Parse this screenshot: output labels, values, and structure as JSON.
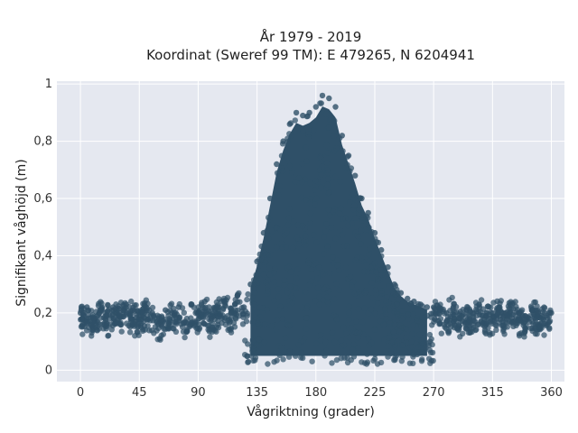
{
  "chart_data": {
    "type": "scatter",
    "title_line1": "År 1979 - 2019",
    "title_line2": "Koordinat (Sweref 99 TM): E 479265, N 6204941",
    "xlabel": "Vågriktning (grader)",
    "ylabel": "Signifikant våghöjd (m)",
    "xlim": [
      -18,
      370
    ],
    "ylim": [
      -0.04,
      1.01
    ],
    "xticks": [
      0,
      45,
      90,
      135,
      180,
      225,
      270,
      315,
      360
    ],
    "xtick_labels": [
      "0",
      "45",
      "90",
      "135",
      "180",
      "225",
      "270",
      "315",
      "360"
    ],
    "yticks": [
      0,
      0.2,
      0.4,
      0.6,
      0.8,
      1
    ],
    "ytick_labels": [
      "0",
      "0,2",
      "0,4",
      "0,6",
      "0,8",
      "1"
    ],
    "grid": true,
    "marker_color": "#2f5068",
    "background_color": "#e5e8f0",
    "points": [
      [
        0,
        0.2
      ],
      [
        5,
        0.22
      ],
      [
        10,
        0.18
      ],
      [
        15,
        0.21
      ],
      [
        20,
        0.19
      ],
      [
        25,
        0.22
      ],
      [
        30,
        0.2
      ],
      [
        35,
        0.23
      ],
      [
        40,
        0.21
      ],
      [
        45,
        0.19
      ],
      [
        50,
        0.22
      ],
      [
        55,
        0.2
      ],
      [
        60,
        0.18
      ],
      [
        65,
        0.21
      ],
      [
        70,
        0.2
      ],
      [
        75,
        0.22
      ],
      [
        80,
        0.17
      ],
      [
        85,
        0.23
      ],
      [
        90,
        0.2
      ],
      [
        95,
        0.24
      ],
      [
        100,
        0.18
      ],
      [
        105,
        0.22
      ],
      [
        110,
        0.24
      ],
      [
        115,
        0.2
      ],
      [
        120,
        0.26
      ],
      [
        125,
        0.22
      ],
      [
        130,
        0.3
      ],
      [
        135,
        0.38
      ],
      [
        140,
        0.48
      ],
      [
        145,
        0.6
      ],
      [
        150,
        0.72
      ],
      [
        155,
        0.8
      ],
      [
        160,
        0.86
      ],
      [
        165,
        0.9
      ],
      [
        170,
        0.89
      ],
      [
        175,
        0.9
      ],
      [
        180,
        0.92
      ],
      [
        185,
        0.96
      ],
      [
        190,
        0.95
      ],
      [
        195,
        0.92
      ],
      [
        200,
        0.82
      ],
      [
        205,
        0.75
      ],
      [
        210,
        0.68
      ],
      [
        215,
        0.6
      ],
      [
        220,
        0.55
      ],
      [
        225,
        0.48
      ],
      [
        230,
        0.42
      ],
      [
        235,
        0.36
      ],
      [
        240,
        0.3
      ],
      [
        245,
        0.27
      ],
      [
        250,
        0.25
      ],
      [
        255,
        0.24
      ],
      [
        260,
        0.23
      ],
      [
        265,
        0.22
      ],
      [
        270,
        0.22
      ],
      [
        275,
        0.21
      ],
      [
        280,
        0.2
      ],
      [
        285,
        0.22
      ],
      [
        290,
        0.18
      ],
      [
        295,
        0.21
      ],
      [
        300,
        0.2
      ],
      [
        305,
        0.22
      ],
      [
        310,
        0.19
      ],
      [
        315,
        0.2
      ],
      [
        320,
        0.22
      ],
      [
        325,
        0.2
      ],
      [
        330,
        0.23
      ],
      [
        335,
        0.2
      ],
      [
        340,
        0.19
      ],
      [
        345,
        0.21
      ],
      [
        350,
        0.2
      ],
      [
        355,
        0.2
      ],
      [
        360,
        0.2
      ]
    ]
  }
}
